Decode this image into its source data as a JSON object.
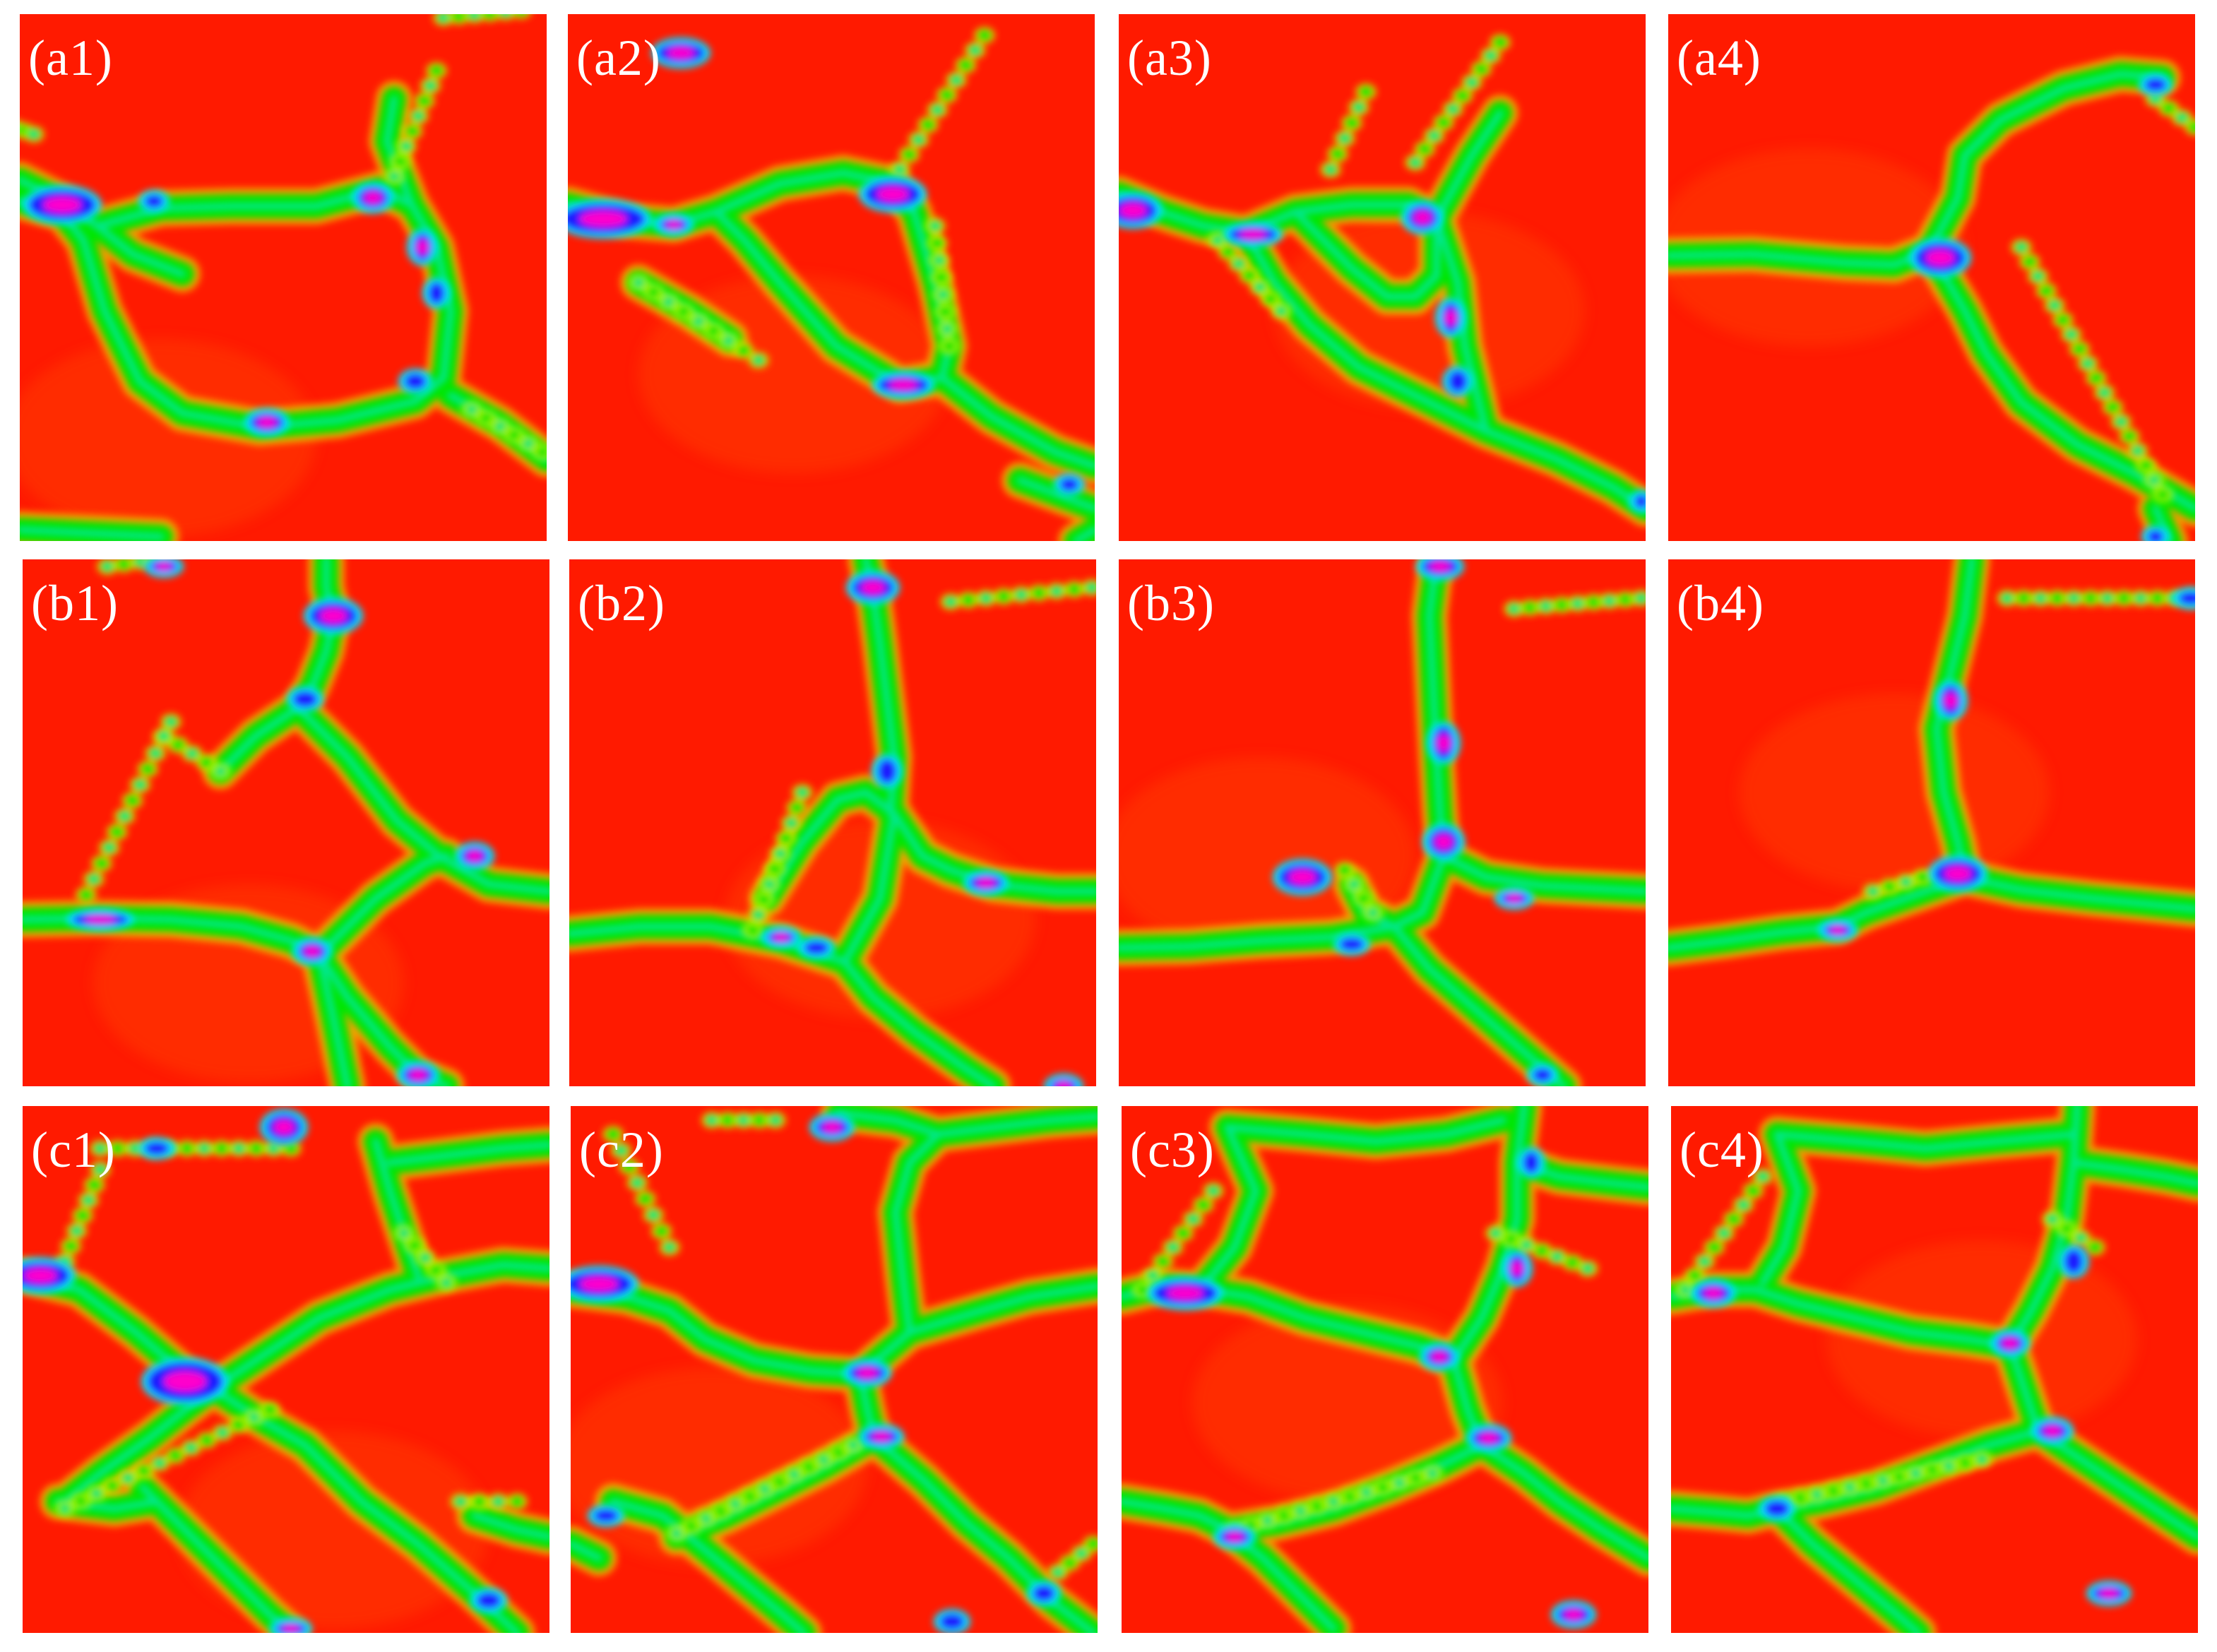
{
  "figure": {
    "panels": [
      {
        "label": "(a1)"
      },
      {
        "label": "(a2)"
      },
      {
        "label": "(a3)"
      },
      {
        "label": "(a4)"
      },
      {
        "label": "(b1)"
      },
      {
        "label": "(b2)"
      },
      {
        "label": "(b3)"
      },
      {
        "label": "(b4)"
      },
      {
        "label": "(c1)"
      },
      {
        "label": "(c2)"
      },
      {
        "label": "(c3)"
      },
      {
        "label": "(c4)"
      }
    ],
    "colors": {
      "background": "#ffffff",
      "grain": "#ff1a00",
      "grain_light": "#ff3b00",
      "boundary_outer": "#f2ff00",
      "boundary": "#00e600",
      "boundary_core": "#00e8ff",
      "node": "#1a1aff",
      "node_core": "#ff00cc",
      "label": "#ffffff"
    }
  }
}
